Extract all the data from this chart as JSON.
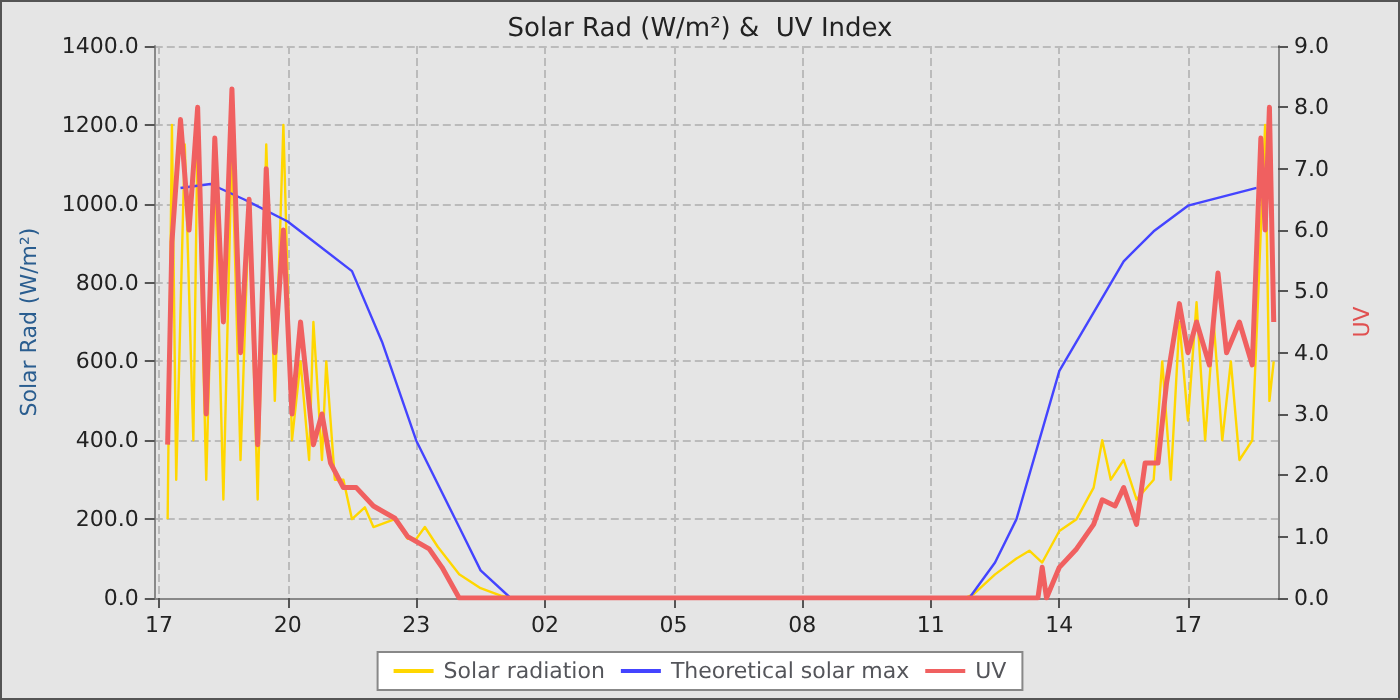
{
  "chart_data": {
    "type": "line",
    "title": "Solar Rad (W/m²) &  UV Index",
    "ylabel": "Solar Rad (W/m²)",
    "y2label": "UV",
    "xlim": [
      "--01-01T16:54",
      "--01-02T19:06"
    ],
    "xticks": [
      {
        "value": "--01-01T17:00",
        "label": "17"
      },
      {
        "value": "--01-01T20:00",
        "label": "20"
      },
      {
        "value": "--01-01T23:00",
        "label": "23"
      },
      {
        "value": "--01-02T02:00",
        "label": "02"
      },
      {
        "value": "--01-02T05:00",
        "label": "05"
      },
      {
        "value": "--01-02T08:00",
        "label": "08"
      },
      {
        "value": "--01-02T11:00",
        "label": "11"
      },
      {
        "value": "--01-02T14:00",
        "label": "14"
      },
      {
        "value": "--01-02T17:00",
        "label": "17"
      }
    ],
    "ylim": [
      0,
      1400
    ],
    "yticks": [
      {
        "value": 0,
        "label": "0.0"
      },
      {
        "value": 200,
        "label": "200.0"
      },
      {
        "value": 400,
        "label": "400.0"
      },
      {
        "value": 600,
        "label": "600.0"
      },
      {
        "value": 800,
        "label": "800.0"
      },
      {
        "value": 1000,
        "label": "1000.0"
      },
      {
        "value": 1200,
        "label": "1200.0"
      },
      {
        "value": 1400,
        "label": "1400.0"
      }
    ],
    "y2lim": [
      0,
      9
    ],
    "y2ticks": [
      {
        "value": 0,
        "label": "0.0"
      },
      {
        "value": 1,
        "label": "1.0"
      },
      {
        "value": 2,
        "label": "2.0"
      },
      {
        "value": 3,
        "label": "3.0"
      },
      {
        "value": 4,
        "label": "4.0"
      },
      {
        "value": 5,
        "label": "5.0"
      },
      {
        "value": 6,
        "label": "6.0"
      },
      {
        "value": 7,
        "label": "7.0"
      },
      {
        "value": 8,
        "label": "8.0"
      },
      {
        "value": 9,
        "label": "9.0"
      }
    ],
    "grid": true,
    "legend": "bottom",
    "marker": "none",
    "line_style": "solid",
    "series": [
      {
        "name": "Solar radiation",
        "color": "#ffd700",
        "x": [
          "--01-01T17:12",
          "--01-01T17:18",
          "--01-01T17:24",
          "--01-01T17:36",
          "--01-01T17:48",
          "--01-01T17:54",
          "--01-01T18:06",
          "--01-01T18:18",
          "--01-01T18:30",
          "--01-01T18:42",
          "--01-01T18:54",
          "--01-01T19:06",
          "--01-01T19:18",
          "--01-01T19:30",
          "--01-01T19:42",
          "--01-01T19:54",
          "--01-01T20:06",
          "--01-01T20:18",
          "--01-01T20:30",
          "--01-01T20:36",
          "--01-01T20:48",
          "--01-01T20:54",
          "--01-01T21:06",
          "--01-01T21:18",
          "--01-01T21:30",
          "--01-01T21:48",
          "--01-01T22:00",
          "--01-01T22:30",
          "--01-01T22:48",
          "--01-01T23:00",
          "--01-01T23:12",
          "--01-01T23:30",
          "--01-02T00:00",
          "--01-02T00:30",
          "--01-02T01:00",
          "--01-02T01:18",
          "--01-02T11:48",
          "--01-02T12:00",
          "--01-02T12:30",
          "--01-02T13:00",
          "--01-02T13:18",
          "--01-02T13:36",
          "--01-02T14:00",
          "--01-02T14:24",
          "--01-02T14:48",
          "--01-02T15:00",
          "--01-02T15:12",
          "--01-02T15:30",
          "--01-02T15:48",
          "--01-02T16:12",
          "--01-02T16:24",
          "--01-02T16:36",
          "--01-02T16:48",
          "--01-02T17:00",
          "--01-02T17:12",
          "--01-02T17:24",
          "--01-02T17:36",
          "--01-02T17:48",
          "--01-02T18:00",
          "--01-02T18:12",
          "--01-02T18:30",
          "--01-02T18:48",
          "--01-02T18:54",
          "--01-02T19:00"
        ],
        "values": [
          200,
          1200,
          300,
          1150,
          400,
          1200,
          300,
          1100,
          250,
          1150,
          350,
          1000,
          250,
          1150,
          500,
          1200,
          400,
          600,
          350,
          700,
          350,
          600,
          300,
          300,
          200,
          230,
          180,
          200,
          150,
          150,
          180,
          130,
          60,
          25,
          5,
          0,
          0,
          10,
          60,
          100,
          120,
          90,
          170,
          200,
          280,
          400,
          300,
          350,
          250,
          300,
          600,
          300,
          700,
          450,
          750,
          400,
          700,
          400,
          600,
          350,
          400,
          1200,
          500,
          600
        ]
      },
      {
        "name": "Theoretical solar max",
        "color": "#4444ff",
        "x": [
          "--01-01T17:30",
          "--01-01T18:12",
          "--01-01T19:00",
          "--01-01T20:00",
          "--01-01T21:30",
          "--01-01T22:12",
          "--01-01T23:00",
          "--01-02T00:00",
          "--01-02T00:30",
          "--01-02T01:12",
          "--01-02T11:54",
          "--01-02T12:30",
          "--01-02T13:00",
          "--01-02T14:00",
          "--01-02T15:30",
          "--01-02T16:12",
          "--01-02T17:00",
          "--01-02T18:36"
        ],
        "values": [
          1040,
          1050,
          1010,
          955,
          829,
          650,
          399,
          180,
          70,
          0,
          0,
          90,
          200,
          576,
          854,
          930,
          995,
          1040
        ]
      },
      {
        "name": "UV",
        "color": "#f06060",
        "axis": "y2",
        "x": [
          "--01-01T17:12",
          "--01-01T17:18",
          "--01-01T17:30",
          "--01-01T17:42",
          "--01-01T17:54",
          "--01-01T18:06",
          "--01-01T18:18",
          "--01-01T18:30",
          "--01-01T18:42",
          "--01-01T18:54",
          "--01-01T19:06",
          "--01-01T19:18",
          "--01-01T19:30",
          "--01-01T19:42",
          "--01-01T19:54",
          "--01-01T20:06",
          "--01-01T20:18",
          "--01-01T20:36",
          "--01-01T20:48",
          "--01-01T21:00",
          "--01-01T21:18",
          "--01-01T21:36",
          "--01-01T22:00",
          "--01-01T22:30",
          "--01-01T22:48",
          "--01-01T23:18",
          "--01-01T23:36",
          "--01-02T00:00",
          "--01-02T13:30",
          "--01-02T13:36",
          "--01-02T13:42",
          "--01-02T14:00",
          "--01-02T14:24",
          "--01-02T14:48",
          "--01-02T15:00",
          "--01-02T15:18",
          "--01-02T15:30",
          "--01-02T15:48",
          "--01-02T16:00",
          "--01-02T16:18",
          "--01-02T16:30",
          "--01-02T16:48",
          "--01-02T17:00",
          "--01-02T17:12",
          "--01-02T17:30",
          "--01-02T17:42",
          "--01-02T17:54",
          "--01-02T18:12",
          "--01-02T18:30",
          "--01-02T18:42",
          "--01-02T18:48",
          "--01-02T18:54",
          "--01-02T19:00"
        ],
        "values": [
          2.5,
          5.8,
          7.8,
          6.0,
          8.0,
          3.0,
          7.5,
          4.5,
          8.3,
          4.0,
          6.5,
          2.5,
          7.0,
          4.0,
          6.0,
          3.0,
          4.5,
          2.5,
          3.0,
          2.2,
          1.8,
          1.8,
          1.5,
          1.3,
          1.0,
          0.8,
          0.5,
          0,
          0,
          0.5,
          0,
          0.5,
          0.8,
          1.2,
          1.6,
          1.5,
          1.8,
          1.2,
          2.2,
          2.2,
          3.5,
          4.8,
          4.0,
          4.5,
          3.8,
          5.3,
          4.0,
          4.5,
          3.8,
          7.5,
          6.0,
          8.0,
          4.5
        ]
      }
    ]
  }
}
